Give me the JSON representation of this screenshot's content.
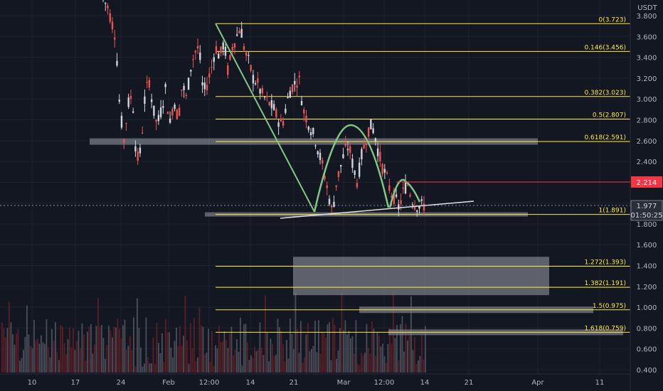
{
  "chart_data": {
    "type": "candlestick",
    "currency": "USDT",
    "y_ticks": [
      "3.800",
      "3.600",
      "3.400",
      "3.200",
      "3.000",
      "2.800",
      "2.600",
      "2.400",
      "2.200",
      "2.000",
      "1.800",
      "1.600",
      "1.400",
      "1.200",
      "1.000",
      "0.800",
      "0.600",
      "0.400"
    ],
    "x_ticks": [
      "10",
      "17",
      "24",
      "Feb",
      "12:00",
      "14",
      "21",
      "Mar",
      "12:00",
      "14",
      "21",
      "Apr",
      "11"
    ],
    "fib_levels": [
      {
        "label": "0(3.723)",
        "value": 3.723
      },
      {
        "label": "0.146(3.456)",
        "value": 3.456
      },
      {
        "label": "0.382(3.023)",
        "value": 3.023
      },
      {
        "label": "0.5(2.807)",
        "value": 2.807
      },
      {
        "label": "0.618(2.591)",
        "value": 2.591
      },
      {
        "label": "1(1.891)",
        "value": 1.891
      },
      {
        "label": "1.272(1.393)",
        "value": 1.393
      },
      {
        "label": "1.382(1.191)",
        "value": 1.191
      },
      {
        "label": "1.5(0.975)",
        "value": 0.975
      },
      {
        "label": "1.618(0.759)",
        "value": 0.759
      }
    ],
    "resistance": {
      "label": "2.214",
      "value": 2.214
    },
    "current_price": {
      "price": "1.977",
      "countdown": "01:50:25"
    },
    "price_path": [
      [
        3.95,
        3.9
      ],
      [
        3.75,
        3.6
      ],
      [
        2.9,
        2.6
      ],
      [
        2.95,
        3.05
      ],
      [
        2.4,
        2.5
      ],
      [
        3.0,
        3.2
      ],
      [
        2.9,
        2.75
      ],
      [
        2.9,
        3.1
      ],
      [
        2.75,
        3.0
      ],
      [
        2.8,
        3.15
      ],
      [
        3.0,
        3.3
      ],
      [
        3.45,
        3.5
      ],
      [
        3.05,
        3.15
      ],
      [
        3.3,
        3.5
      ],
      [
        3.4,
        3.55
      ],
      [
        3.25,
        3.5
      ],
      [
        3.6,
        3.7
      ],
      [
        3.45,
        3.35
      ],
      [
        3.2,
        3.15
      ],
      [
        3.05,
        3.0
      ],
      [
        2.95,
        2.9
      ],
      [
        2.8,
        2.75
      ],
      [
        2.95,
        3.1
      ],
      [
        3.15,
        3.2
      ],
      [
        2.9,
        2.8
      ],
      [
        2.7,
        2.6
      ],
      [
        2.45,
        2.3
      ],
      [
        2.1,
        1.9
      ],
      [
        2.2,
        2.35
      ],
      [
        2.5,
        2.55
      ],
      [
        2.35,
        2.2
      ],
      [
        2.45,
        2.6
      ],
      [
        2.75,
        2.7
      ],
      [
        2.5,
        2.35
      ],
      [
        2.25,
        2.1
      ],
      [
        2.05,
        1.95
      ],
      [
        2.1,
        2.2
      ],
      [
        2.05,
        1.98
      ],
      [
        1.97,
        1.977
      ]
    ],
    "colors": {
      "up": "#26a69a",
      "down": "#ef5350",
      "fib": "#ffeb3b",
      "resistance": "#f23645",
      "arc": "#81c784",
      "trendline": "#e0e0e0",
      "zone": "#787b86"
    }
  }
}
